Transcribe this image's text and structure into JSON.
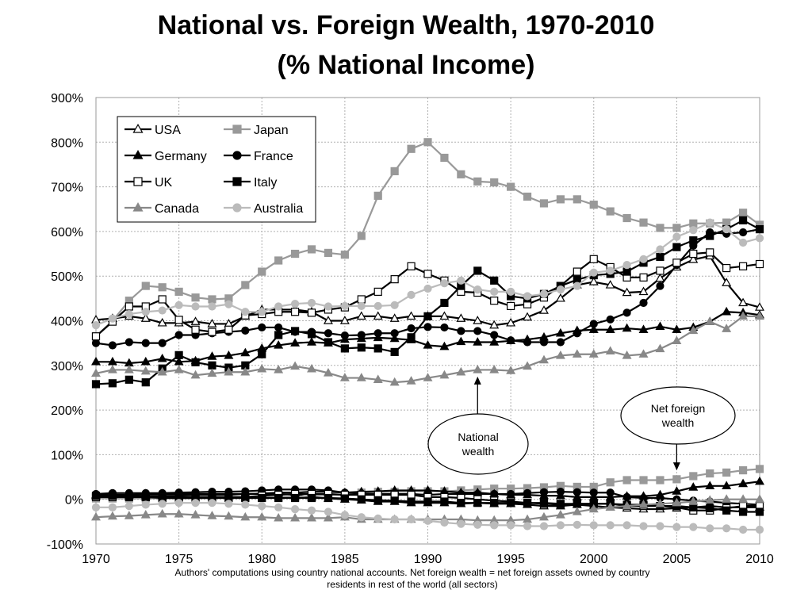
{
  "title_line1": "National vs. Foreign Wealth, 1970-2010",
  "title_line2": "(% National Income)",
  "footnote_line1": "Authors' computations using country national accounts. Net foreign wealth = net foreign assets owned by country",
  "footnote_line2": "residents in rest of the world (all sectors)",
  "chart_data": {
    "type": "line",
    "title": "National vs. Foreign Wealth, 1970-2010 (% National Income)",
    "xlabel": "",
    "ylabel": "",
    "xlim": [
      1970,
      2010
    ],
    "ylim": [
      -100,
      900
    ],
    "x_ticks": [
      1970,
      1975,
      1980,
      1985,
      1990,
      1995,
      2000,
      2005,
      2010
    ],
    "y_ticks": [
      "-100%",
      "0%",
      "100%",
      "200%",
      "300%",
      "400%",
      "500%",
      "600%",
      "700%",
      "800%",
      "900%"
    ],
    "grid": true,
    "legend_position": "top-left",
    "annotations": [
      {
        "text": "National wealth",
        "arrow_to": [
          1993,
          275
        ]
      },
      {
        "text": "Net foreign wealth",
        "arrow_to": [
          2005,
          65
        ]
      }
    ],
    "x": [
      1970,
      1971,
      1972,
      1973,
      1974,
      1975,
      1976,
      1977,
      1978,
      1979,
      1980,
      1981,
      1982,
      1983,
      1984,
      1985,
      1986,
      1987,
      1988,
      1989,
      1990,
      1991,
      1992,
      1993,
      1994,
      1995,
      1996,
      1997,
      1998,
      1999,
      2000,
      2001,
      2002,
      2003,
      2004,
      2005,
      2006,
      2007,
      2008,
      2009,
      2010
    ],
    "series": [
      {
        "name": "USA",
        "color": "#000000",
        "marker": "triangle-open",
        "kind": "national",
        "values": [
          402,
          405,
          410,
          405,
          395,
          395,
          398,
          393,
          393,
          410,
          425,
          425,
          425,
          420,
          400,
          400,
          410,
          410,
          405,
          410,
          410,
          410,
          405,
          400,
          390,
          395,
          408,
          423,
          450,
          480,
          487,
          480,
          463,
          465,
          495,
          520,
          537,
          545,
          485,
          440,
          430
        ]
      },
      {
        "name": "Japan",
        "color": "#999999",
        "marker": "square-filled",
        "kind": "national",
        "values": [
          365,
          400,
          445,
          478,
          475,
          465,
          452,
          448,
          450,
          480,
          510,
          535,
          550,
          560,
          552,
          548,
          590,
          680,
          735,
          785,
          800,
          765,
          728,
          712,
          710,
          700,
          678,
          663,
          672,
          672,
          660,
          645,
          630,
          620,
          608,
          608,
          618,
          618,
          620,
          642,
          615
        ]
      },
      {
        "name": "Germany",
        "color": "#000000",
        "marker": "triangle-filled",
        "kind": "national",
        "values": [
          308,
          308,
          305,
          308,
          315,
          308,
          310,
          320,
          322,
          328,
          338,
          345,
          350,
          352,
          350,
          358,
          360,
          362,
          360,
          357,
          345,
          342,
          353,
          352,
          352,
          355,
          358,
          363,
          372,
          378,
          380,
          380,
          383,
          380,
          387,
          380,
          385,
          398,
          420,
          418,
          413
        ]
      },
      {
        "name": "France",
        "color": "#000000",
        "marker": "circle-filled",
        "kind": "national",
        "values": [
          350,
          345,
          352,
          350,
          350,
          368,
          368,
          372,
          375,
          378,
          385,
          385,
          375,
          375,
          372,
          367,
          368,
          372,
          372,
          383,
          386,
          385,
          377,
          377,
          368,
          356,
          352,
          352,
          352,
          372,
          393,
          403,
          418,
          440,
          478,
          525,
          568,
          598,
          595,
          598,
          605
        ]
      },
      {
        "name": "UK",
        "color": "#000000",
        "marker": "square-open",
        "kind": "national",
        "values": [
          365,
          398,
          432,
          432,
          448,
          402,
          380,
          375,
          380,
          412,
          415,
          420,
          420,
          418,
          425,
          430,
          448,
          465,
          493,
          522,
          505,
          490,
          465,
          463,
          445,
          433,
          437,
          452,
          478,
          510,
          538,
          520,
          497,
          497,
          512,
          530,
          550,
          553,
          518,
          522,
          527
        ]
      },
      {
        "name": "Italy",
        "color": "#000000",
        "marker": "square-filled",
        "kind": "national",
        "values": [
          258,
          260,
          268,
          262,
          293,
          323,
          307,
          300,
          295,
          300,
          325,
          368,
          377,
          370,
          352,
          338,
          340,
          338,
          330,
          363,
          410,
          440,
          478,
          512,
          490,
          455,
          450,
          460,
          478,
          492,
          502,
          505,
          510,
          530,
          543,
          565,
          580,
          590,
          605,
          625,
          605
        ]
      },
      {
        "name": "Canada",
        "color": "#888888",
        "marker": "triangle-filled",
        "kind": "national",
        "values": [
          282,
          290,
          290,
          287,
          285,
          290,
          278,
          282,
          285,
          285,
          292,
          290,
          298,
          292,
          283,
          272,
          272,
          268,
          262,
          265,
          272,
          278,
          285,
          290,
          290,
          288,
          298,
          312,
          322,
          325,
          325,
          332,
          322,
          325,
          337,
          355,
          378,
          398,
          382,
          410,
          410
        ]
      },
      {
        "name": "Australia",
        "color": "#bbbbbb",
        "marker": "circle-filled",
        "kind": "national",
        "values": [
          390,
          405,
          415,
          420,
          423,
          435,
          432,
          432,
          437,
          420,
          420,
          432,
          438,
          440,
          432,
          433,
          433,
          433,
          435,
          458,
          472,
          484,
          490,
          470,
          465,
          465,
          455,
          460,
          470,
          478,
          508,
          512,
          525,
          538,
          560,
          588,
          603,
          620,
          605,
          575,
          585
        ]
      },
      {
        "name": "USA",
        "color": "#000000",
        "marker": "triangle-open",
        "kind": "foreign",
        "values": [
          10,
          10,
          10,
          12,
          12,
          12,
          12,
          12,
          12,
          12,
          12,
          12,
          10,
          5,
          2,
          0,
          -2,
          -5,
          -5,
          -8,
          -8,
          -8,
          -10,
          -8,
          -10,
          -10,
          -12,
          -15,
          -15,
          -12,
          -15,
          -18,
          -20,
          -22,
          -22,
          -20,
          -18,
          -15,
          -18,
          -18,
          -18
        ]
      },
      {
        "name": "Japan",
        "color": "#999999",
        "marker": "square-filled",
        "kind": "foreign",
        "values": [
          2,
          2,
          2,
          2,
          2,
          2,
          2,
          3,
          3,
          3,
          4,
          5,
          6,
          8,
          9,
          10,
          15,
          17,
          17,
          18,
          18,
          18,
          20,
          22,
          24,
          24,
          25,
          27,
          30,
          28,
          28,
          38,
          43,
          43,
          43,
          45,
          52,
          58,
          60,
          65,
          68
        ]
      },
      {
        "name": "Germany",
        "color": "#000000",
        "marker": "triangle-filled",
        "kind": "foreign",
        "values": [
          8,
          8,
          8,
          8,
          8,
          8,
          10,
          10,
          10,
          12,
          13,
          15,
          15,
          17,
          17,
          15,
          17,
          18,
          20,
          20,
          20,
          18,
          15,
          15,
          12,
          10,
          10,
          8,
          8,
          5,
          5,
          5,
          7,
          7,
          10,
          18,
          27,
          30,
          30,
          35,
          40
        ]
      },
      {
        "name": "France",
        "color": "#000000",
        "marker": "circle-filled",
        "kind": "foreign",
        "values": [
          12,
          14,
          14,
          14,
          14,
          15,
          16,
          17,
          17,
          18,
          20,
          22,
          22,
          22,
          20,
          15,
          13,
          12,
          12,
          12,
          10,
          12,
          12,
          12,
          12,
          12,
          14,
          16,
          17,
          16,
          15,
          15,
          5,
          3,
          3,
          0,
          -3,
          -5,
          -8,
          -10,
          -12
        ]
      },
      {
        "name": "UK",
        "color": "#000000",
        "marker": "square-open",
        "kind": "foreign",
        "values": [
          5,
          5,
          5,
          5,
          5,
          5,
          5,
          5,
          5,
          5,
          8,
          10,
          12,
          12,
          12,
          10,
          10,
          10,
          10,
          10,
          5,
          5,
          3,
          0,
          -3,
          -5,
          -8,
          -10,
          -12,
          -10,
          -10,
          -10,
          -15,
          -15,
          -15,
          -18,
          -25,
          -25,
          -20,
          -15,
          -15
        ]
      },
      {
        "name": "Italy",
        "color": "#000000",
        "marker": "square-filled",
        "kind": "foreign",
        "values": [
          8,
          8,
          6,
          5,
          3,
          3,
          3,
          3,
          3,
          3,
          3,
          3,
          3,
          3,
          3,
          2,
          0,
          -2,
          -3,
          -5,
          -5,
          -5,
          -8,
          -8,
          -8,
          -8,
          -8,
          -8,
          -10,
          -10,
          -10,
          -10,
          -12,
          -12,
          -15,
          -15,
          -18,
          -20,
          -25,
          -28,
          -28
        ]
      },
      {
        "name": "Canada",
        "color": "#888888",
        "marker": "triangle-filled",
        "kind": "foreign",
        "values": [
          -40,
          -38,
          -37,
          -35,
          -33,
          -33,
          -35,
          -37,
          -38,
          -40,
          -40,
          -42,
          -42,
          -42,
          -42,
          -40,
          -45,
          -45,
          -45,
          -45,
          -45,
          -45,
          -45,
          -47,
          -47,
          -47,
          -45,
          -40,
          -35,
          -28,
          -22,
          -18,
          -15,
          -12,
          -10,
          -8,
          -5,
          -2,
          0,
          0,
          0
        ]
      },
      {
        "name": "Australia",
        "color": "#bbbbbb",
        "marker": "circle-filled",
        "kind": "foreign",
        "values": [
          -18,
          -18,
          -15,
          -12,
          -10,
          -8,
          -8,
          -8,
          -10,
          -12,
          -15,
          -18,
          -22,
          -25,
          -28,
          -35,
          -40,
          -43,
          -45,
          -45,
          -48,
          -52,
          -55,
          -57,
          -58,
          -58,
          -60,
          -60,
          -58,
          -57,
          -58,
          -58,
          -58,
          -60,
          -60,
          -62,
          -62,
          -65,
          -65,
          -68,
          -68
        ]
      }
    ]
  }
}
